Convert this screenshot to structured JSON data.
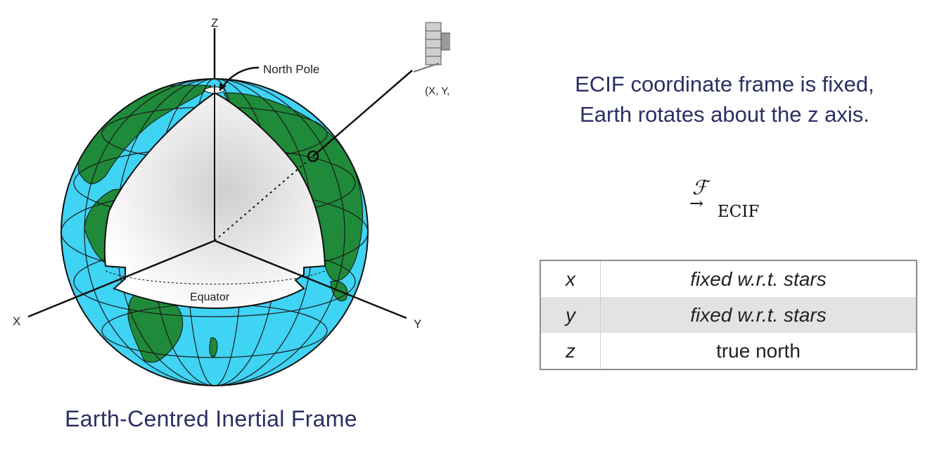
{
  "diagram": {
    "axis_labels": {
      "x": "X",
      "y": "Y",
      "z": "Z"
    },
    "north_pole_label": "North Pole",
    "equator_label": "Equator",
    "satellite_label": "(X, Y, Z)",
    "caption": "Earth-Centred Inertial Frame",
    "colors": {
      "ocean": "#3fd3f4",
      "land": "#1f8a3a",
      "grid": "#1a1a1a",
      "text": "#2b2f63"
    }
  },
  "heading": {
    "line1": "ECIF coordinate frame is fixed,",
    "line2": "Earth rotates about the z axis."
  },
  "frame_symbol": {
    "letter": "ℱ",
    "arrow": "→",
    "subscript": "ECIF"
  },
  "axis_table": {
    "rows": [
      {
        "axis": "x",
        "desc": "fixed w.r.t. stars"
      },
      {
        "axis": "y",
        "desc": "fixed w.r.t. stars"
      },
      {
        "axis": "z",
        "desc": "true north"
      }
    ]
  }
}
